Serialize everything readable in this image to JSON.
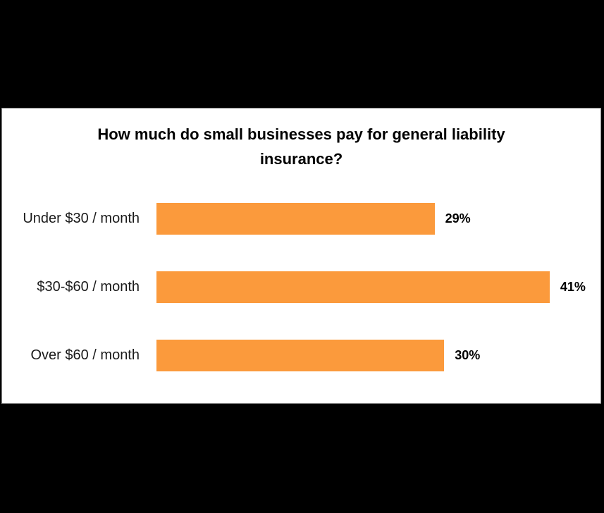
{
  "chart_data": {
    "type": "bar",
    "orientation": "horizontal",
    "title": "How much do small businesses pay for general liability insurance?",
    "categories": [
      "Under $30 / month",
      "$30-$60 / month",
      "Over $60 / month"
    ],
    "values": [
      29,
      41,
      30
    ],
    "value_labels": [
      "29%",
      "41%",
      "30%"
    ],
    "xlabel": "",
    "ylabel": "",
    "xlim": [
      0,
      46.3
    ],
    "grid": false,
    "legend": false,
    "bar_color": "#fb9a3c"
  },
  "colors": {
    "page_background": "#000000",
    "panel_background": "#ffffff",
    "panel_border": "#8c8c8c",
    "bar_fill": "#fb9a3c",
    "title_text": "#000000",
    "category_text": "#1a1a1a",
    "value_text": "#000000"
  }
}
